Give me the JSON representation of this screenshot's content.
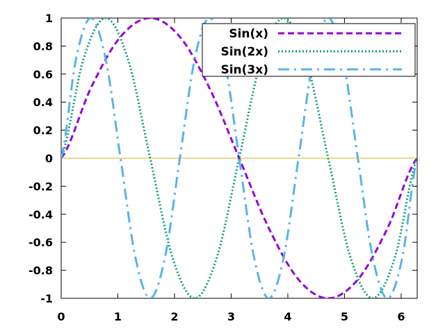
{
  "chart_data": {
    "type": "line",
    "title": "",
    "xlabel": "",
    "ylabel": "",
    "xlim": [
      0,
      6.2832
    ],
    "ylim": [
      -1,
      1
    ],
    "x_ticks": [
      0,
      1,
      2,
      3,
      4,
      5,
      6
    ],
    "x_tick_labels": [
      "0",
      "1",
      "2",
      "3",
      "4",
      "5",
      "6"
    ],
    "y_ticks": [
      -1,
      -0.8,
      -0.6,
      -0.4,
      -0.2,
      0,
      0.2,
      0.4,
      0.6,
      0.8,
      1
    ],
    "y_tick_labels": [
      "-1",
      "-0.8",
      "-0.6",
      "-0.4",
      "-0.2",
      "0",
      "0.2",
      "0.4",
      "0.6",
      "0.8",
      "1"
    ],
    "grid": false,
    "legend_position": "top-right",
    "baseline": {
      "y": 0,
      "color": "#e0b020"
    },
    "series": [
      {
        "name": "Sin(x)",
        "color": "#9400d3",
        "style": "dashed",
        "x": [
          0,
          0.5236,
          1.0472,
          1.5708,
          2.0944,
          2.618,
          3.1416,
          3.6652,
          4.1888,
          4.7124,
          5.236,
          5.7596,
          6.2832
        ],
        "values": [
          0,
          0.5,
          0.866,
          1,
          0.866,
          0.5,
          0,
          -0.5,
          -0.866,
          -1,
          -0.866,
          -0.5,
          0
        ]
      },
      {
        "name": "Sin(2x)",
        "color": "#009e73",
        "style": "dotted",
        "x": [
          0,
          0.3927,
          0.7854,
          1.1781,
          1.5708,
          1.9635,
          2.3562,
          2.7489,
          3.1416,
          3.5343,
          3.927,
          4.3197,
          4.7124,
          5.1051,
          5.4978,
          5.8905,
          6.2832
        ],
        "values": [
          0,
          0.7071,
          1,
          0.7071,
          0,
          -0.7071,
          -1,
          -0.7071,
          0,
          0.7071,
          1,
          0.7071,
          0,
          -0.7071,
          -1,
          -0.7071,
          0
        ]
      },
      {
        "name": "Sin(3x)",
        "color": "#56b4e9",
        "style": "dash-dot",
        "x": [
          0,
          0.2618,
          0.5236,
          0.7854,
          1.0472,
          1.309,
          1.5708,
          1.8326,
          2.0944,
          2.3562,
          2.618,
          2.8798,
          3.1416,
          3.4034,
          3.6652,
          3.927,
          4.1888,
          4.4506,
          4.7124,
          4.9742,
          5.236,
          5.4978,
          5.7596,
          6.0214,
          6.2832
        ],
        "values": [
          0,
          0.7071,
          1,
          0.7071,
          0,
          -0.7071,
          -1,
          -0.7071,
          0,
          0.7071,
          1,
          0.7071,
          0,
          -0.7071,
          -1,
          -0.7071,
          0,
          0.7071,
          1,
          0.7071,
          0,
          -0.7071,
          -1,
          -0.7071,
          0
        ]
      }
    ]
  }
}
